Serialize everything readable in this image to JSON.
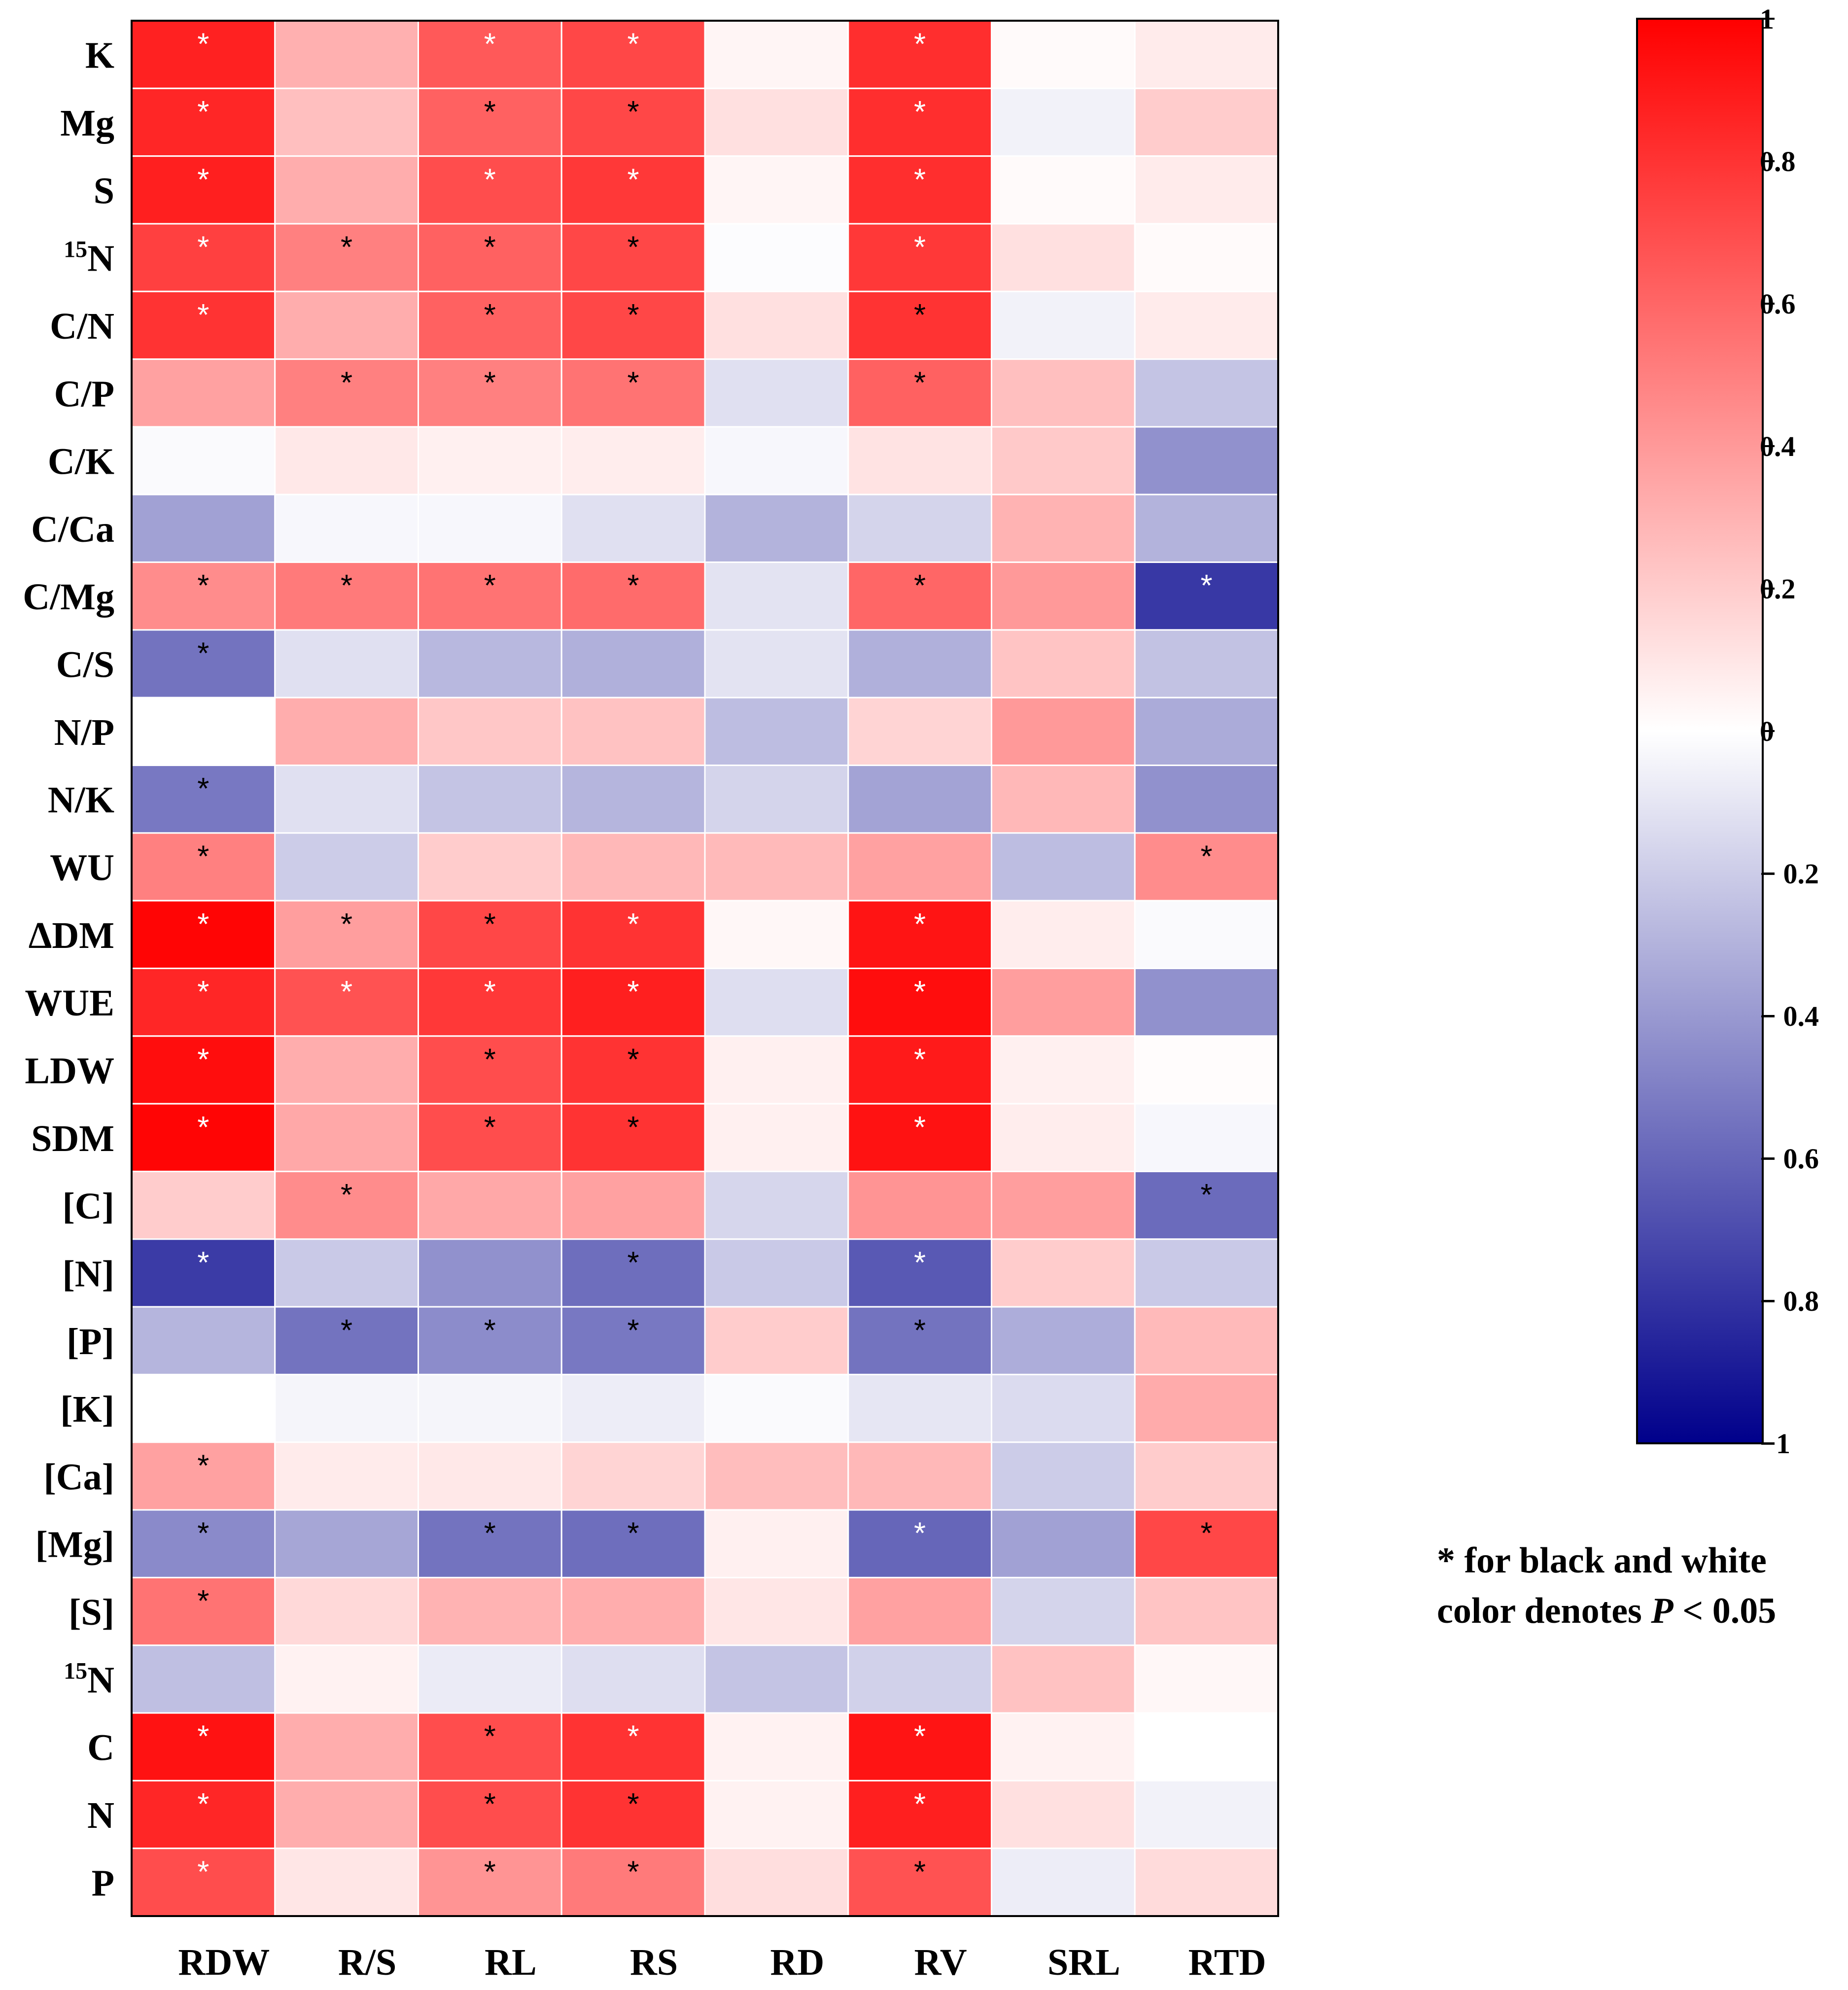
{
  "chart_data": {
    "type": "heatmap",
    "title": "",
    "columns": [
      "RDW",
      "R/S",
      "RL",
      "RS",
      "RD",
      "RV",
      "SRL",
      "RTD"
    ],
    "rows": [
      {
        "label": "K",
        "sup": "",
        "values": [
          0.87,
          0.31,
          0.65,
          0.72,
          0.04,
          0.82,
          0.02,
          0.08
        ],
        "sig": [
          "w",
          "",
          "w",
          "w",
          "",
          "w",
          "",
          ""
        ]
      },
      {
        "label": "Mg",
        "sup": "",
        "values": [
          0.85,
          0.25,
          0.62,
          0.72,
          0.12,
          0.82,
          -0.05,
          0.2
        ],
        "sig": [
          "w",
          "",
          "b",
          "b",
          "",
          "w",
          "",
          ""
        ]
      },
      {
        "label": "S",
        "sup": "",
        "values": [
          0.88,
          0.32,
          0.7,
          0.78,
          0.04,
          0.82,
          0.02,
          0.08
        ],
        "sig": [
          "w",
          "",
          "w",
          "w",
          "",
          "w",
          "",
          ""
        ]
      },
      {
        "label": "N",
        "sup": "15",
        "values": [
          0.75,
          0.5,
          0.62,
          0.72,
          -0.01,
          0.78,
          0.12,
          0.02
        ],
        "sig": [
          "w",
          "b",
          "b",
          "b",
          "",
          "w",
          "",
          ""
        ]
      },
      {
        "label": "C/N",
        "sup": "",
        "values": [
          0.8,
          0.32,
          0.62,
          0.72,
          0.12,
          0.8,
          -0.05,
          0.08
        ],
        "sig": [
          "w",
          "",
          "b",
          "b",
          "",
          "b",
          "",
          ""
        ]
      },
      {
        "label": "C/P",
        "sup": "",
        "values": [
          0.37,
          0.5,
          0.5,
          0.55,
          -0.12,
          0.62,
          0.25,
          -0.23
        ],
        "sig": [
          "",
          "b",
          "b",
          "b",
          "",
          "b",
          "",
          ""
        ]
      },
      {
        "label": "C/K",
        "sup": "",
        "values": [
          -0.02,
          0.09,
          0.06,
          0.07,
          -0.03,
          0.11,
          0.21,
          -0.43
        ],
        "sig": [
          "",
          "",
          "",
          "",
          "",
          "",
          "",
          ""
        ]
      },
      {
        "label": "C/Ca",
        "sup": "",
        "values": [
          -0.37,
          -0.03,
          -0.03,
          -0.12,
          -0.3,
          -0.17,
          0.3,
          -0.3
        ],
        "sig": [
          "",
          "",
          "",
          "",
          "",
          "",
          "",
          ""
        ]
      },
      {
        "label": "C/Mg",
        "sup": "",
        "values": [
          0.45,
          0.52,
          0.55,
          0.58,
          -0.11,
          0.6,
          0.4,
          -0.78
        ],
        "sig": [
          "b",
          "b",
          "b",
          "b",
          "",
          "b",
          "",
          "w"
        ]
      },
      {
        "label": "C/S",
        "sup": "",
        "values": [
          -0.55,
          -0.12,
          -0.28,
          -0.31,
          -0.11,
          -0.31,
          0.23,
          -0.24
        ],
        "sig": [
          "b",
          "",
          "",
          "",
          "",
          "",
          "",
          ""
        ]
      },
      {
        "label": "N/P",
        "sup": "",
        "values": [
          0.0,
          0.32,
          0.22,
          0.24,
          -0.26,
          0.17,
          0.4,
          -0.33
        ],
        "sig": [
          "",
          "",
          "",
          "",
          "",
          "",
          "",
          ""
        ]
      },
      {
        "label": "N/K",
        "sup": "",
        "values": [
          -0.53,
          -0.12,
          -0.23,
          -0.29,
          -0.17,
          -0.36,
          0.28,
          -0.43
        ],
        "sig": [
          "b",
          "",
          "",
          "",
          "",
          "",
          "",
          ""
        ]
      },
      {
        "label": "WU",
        "sup": "",
        "values": [
          0.5,
          -0.2,
          0.2,
          0.28,
          0.27,
          0.37,
          -0.26,
          0.45
        ],
        "sig": [
          "b",
          "",
          "",
          "",
          "",
          "",
          "",
          "b"
        ]
      },
      {
        "label": "ΔDM",
        "sup": "",
        "values": [
          0.98,
          0.38,
          0.72,
          0.8,
          0.03,
          0.92,
          0.07,
          -0.02
        ],
        "sig": [
          "w",
          "b",
          "b",
          "w",
          "",
          "w",
          "",
          ""
        ]
      },
      {
        "label": "WUE",
        "sup": "",
        "values": [
          0.85,
          0.68,
          0.78,
          0.88,
          -0.13,
          0.95,
          0.38,
          -0.43
        ],
        "sig": [
          "w",
          "w",
          "w",
          "w",
          "",
          "w",
          "",
          ""
        ]
      },
      {
        "label": "LDW",
        "sup": "",
        "values": [
          0.95,
          0.32,
          0.7,
          0.8,
          0.06,
          0.9,
          0.06,
          0.01
        ],
        "sig": [
          "w",
          "",
          "b",
          "b",
          "",
          "w",
          "",
          ""
        ]
      },
      {
        "label": "SDM",
        "sup": "",
        "values": [
          0.98,
          0.34,
          0.7,
          0.8,
          0.06,
          0.93,
          0.07,
          -0.03
        ],
        "sig": [
          "w",
          "",
          "b",
          "b",
          "",
          "w",
          "",
          ""
        ]
      },
      {
        "label": "[C]",
        "sup": "",
        "values": [
          0.2,
          0.45,
          0.34,
          0.37,
          -0.16,
          0.42,
          0.38,
          -0.58
        ],
        "sig": [
          "",
          "b",
          "",
          "",
          "",
          "",
          "",
          "b"
        ]
      },
      {
        "label": "[N]",
        "sup": "",
        "values": [
          -0.77,
          -0.21,
          -0.43,
          -0.57,
          -0.21,
          -0.65,
          0.2,
          -0.21
        ],
        "sig": [
          "w",
          "",
          "",
          "b",
          "",
          "w",
          "",
          ""
        ]
      },
      {
        "label": "[P]",
        "sup": "",
        "values": [
          -0.29,
          -0.55,
          -0.45,
          -0.53,
          0.2,
          -0.55,
          -0.32,
          0.27
        ],
        "sig": [
          "",
          "b",
          "b",
          "b",
          "",
          "b",
          "",
          ""
        ]
      },
      {
        "label": "[K]",
        "sup": "",
        "values": [
          0.0,
          -0.04,
          -0.04,
          -0.07,
          -0.02,
          -0.1,
          -0.14,
          0.33
        ],
        "sig": [
          "",
          "",
          "",
          "",
          "",
          "",
          "",
          ""
        ]
      },
      {
        "label": "[Ca]",
        "sup": "",
        "values": [
          0.37,
          0.08,
          0.09,
          0.17,
          0.26,
          0.28,
          -0.2,
          0.2
        ],
        "sig": [
          "b",
          "",
          "",
          "",
          "",
          "",
          "",
          ""
        ]
      },
      {
        "label": "[Mg]",
        "sup": "",
        "values": [
          -0.46,
          -0.35,
          -0.55,
          -0.57,
          0.06,
          -0.6,
          -0.37,
          0.72
        ],
        "sig": [
          "b",
          "",
          "b",
          "b",
          "",
          "w",
          "",
          "b"
        ]
      },
      {
        "label": "[S]",
        "sup": "",
        "values": [
          0.55,
          0.15,
          0.3,
          0.32,
          0.1,
          0.37,
          -0.17,
          0.23
        ],
        "sig": [
          "b",
          "",
          "",
          "",
          "",
          "",
          "",
          ""
        ]
      },
      {
        "label": "N",
        "sup": "15",
        "values": [
          -0.25,
          0.05,
          -0.08,
          -0.13,
          -0.23,
          -0.18,
          0.24,
          0.03
        ],
        "sig": [
          "",
          "",
          "",
          "",
          "",
          "",
          "",
          ""
        ]
      },
      {
        "label": "C",
        "sup": "",
        "values": [
          0.93,
          0.32,
          0.7,
          0.8,
          0.05,
          0.92,
          0.05,
          0.0
        ],
        "sig": [
          "w",
          "",
          "b",
          "w",
          "",
          "w",
          "",
          ""
        ]
      },
      {
        "label": "N",
        "sup": "",
        "values": [
          0.85,
          0.32,
          0.7,
          0.8,
          0.05,
          0.88,
          0.12,
          -0.05
        ],
        "sig": [
          "w",
          "",
          "b",
          "b",
          "",
          "w",
          "",
          ""
        ]
      },
      {
        "label": "P",
        "sup": "",
        "values": [
          0.7,
          0.1,
          0.42,
          0.52,
          0.13,
          0.68,
          -0.07,
          0.14
        ],
        "sig": [
          "w",
          "",
          "b",
          "b",
          "",
          "b",
          "",
          ""
        ]
      }
    ],
    "colorbar": {
      "min": -1,
      "max": 1,
      "ticks": [
        1,
        0.8,
        0.6,
        0.4,
        0.2,
        0,
        -0.2,
        -0.4,
        -0.6,
        -0.8,
        -1
      ],
      "tick_labels": [
        "1",
        "0.8",
        "0.6",
        "0.4",
        "0.2",
        "0",
        "− 0.2",
        "− 0.4",
        "− 0.6",
        "− 0.8",
        "−1"
      ]
    },
    "colors": {
      "negative": "#00008B",
      "neutral": "#FFFFFF",
      "positive": "#FF0000",
      "grid": "#FFFFFF",
      "frame": "#000000"
    },
    "significance_marker": "*",
    "legend_note": {
      "line1": "* for black and white",
      "line2_prefix": "color denotes ",
      "line2_italic": "P",
      "line2_suffix": " < 0.05"
    }
  }
}
